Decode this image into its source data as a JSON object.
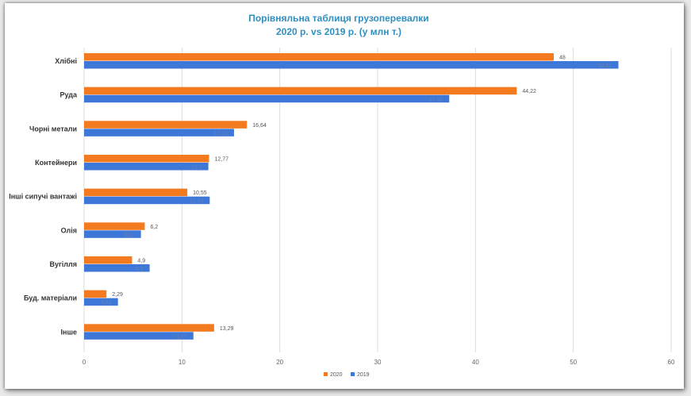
{
  "chart_data": {
    "type": "bar",
    "orientation": "horizontal",
    "title": "Порівняльна таблиця грузоперевалки",
    "subtitle": "2020 р. vs 2019 р. (у млн т.)",
    "categories": [
      "Хлібні",
      "Руда",
      "Чорні метали",
      "Контейнери",
      "Інші сипучі вантажі",
      "Олія",
      "Вугілля",
      "Буд. матеріали",
      "Інше"
    ],
    "series": [
      {
        "name": "2020",
        "color": "#f47a20",
        "values": [
          48,
          44.22,
          16.64,
          12.77,
          10.55,
          6.2,
          4.9,
          2.29,
          13.29
        ],
        "labels": [
          "48",
          "44,22",
          "16,64",
          "12,77",
          "10,55",
          "6,2",
          "4,9",
          "2,29",
          "13,29"
        ]
      },
      {
        "name": "2019",
        "color": "#3d78d8",
        "values": [
          54.61,
          37.32,
          15.32,
          12.7,
          12.84,
          5.81,
          6.7,
          3.46,
          11.17
        ],
        "labels": [
          "54,61",
          "37,32",
          "15,32",
          "12,7",
          "12,84",
          "5,81",
          "6,7",
          "3,46",
          "11,17"
        ]
      }
    ],
    "xlim": [
      0,
      60
    ],
    "xticks": [
      "0",
      "10",
      "20",
      "30",
      "40",
      "50",
      "60"
    ],
    "grid": true,
    "legend": "bottom"
  }
}
